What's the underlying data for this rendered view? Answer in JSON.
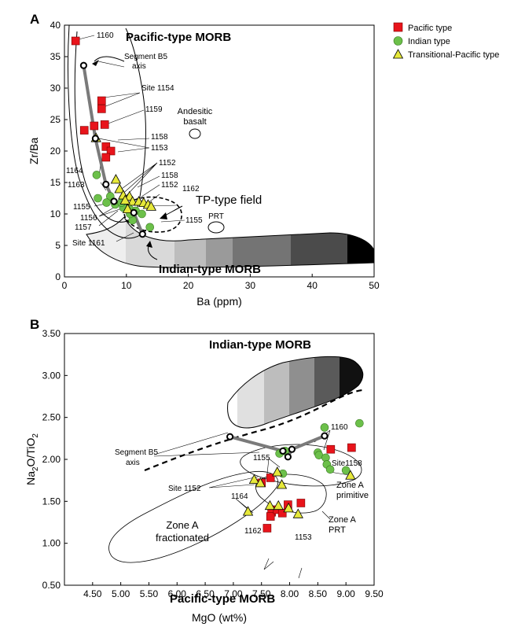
{
  "panel_a": {
    "panel_label": "A",
    "xlabel": "Ba (ppm)",
    "ylabel": "Zr/Ba",
    "pacific_morb": "Pacific-type MORB",
    "indian_morb": "Indian-type MORB",
    "tp_field": "TP-type field",
    "andesitic_basalt": [
      "Andesitic",
      "basalt"
    ],
    "prt": "PRT",
    "segment_b5": [
      "Segment B5",
      "axis"
    ],
    "site_labels": {
      "1160": "1160",
      "s1154": "Site 1154",
      "1159": "1159",
      "1158": "1158",
      "1153": "1153",
      "1152": "1152",
      "1158b": "1158",
      "1152b": "1152",
      "1162": "1162",
      "1155": "1155",
      "1164": "1164",
      "1163": "1163",
      "1155b": "1155",
      "1156": "1156",
      "1157": "1157",
      "s1161": "Site 1161"
    }
  },
  "panel_b": {
    "panel_label": "B",
    "xlabel": "MgO (wt%)",
    "ylabel_main": "Na",
    "ylabel_sub1": "2",
    "ylabel_mid": "O/TiO",
    "ylabel_sub2": "2",
    "indian_morb": "Indian-type MORB",
    "pacific_morb": "Pacific-type MORB",
    "segment_b5": [
      "Segment B5",
      "axis"
    ],
    "zone_a_fractionated": [
      "Zone A",
      "fractionated"
    ],
    "zone_a_primitive": [
      "Zone A",
      "primitive"
    ],
    "zone_a_prt": [
      "Zone A",
      "PRT"
    ],
    "site_labels": {
      "1160": "1160",
      "s1158": "Site1158",
      "1155": "1155",
      "s1152": "Site 1152",
      "1164": "1164",
      "1162": "1162",
      "1153": "1153"
    }
  },
  "legend": {
    "items": [
      {
        "label": "Pacific type",
        "marker": "square",
        "color": "#e8141b"
      },
      {
        "label": "Indian type",
        "marker": "circle",
        "color": "#6cc04a"
      },
      {
        "label": "Transitional-Pacific type",
        "marker": "triangle",
        "color": "#e6e83a"
      }
    ]
  },
  "colors": {
    "pacific": "#e8141b",
    "indian": "#6cc04a",
    "transitional": "#e6e83a",
    "segment_line": "#7a7a7a",
    "gradient": [
      "#eeeeee",
      "#d9d9d9",
      "#bdbdbd",
      "#9a9a9a",
      "#747474",
      "#4b4b4b",
      "#202020",
      "#000000"
    ]
  },
  "chart_data": [
    {
      "type": "scatter",
      "xlabel": "Ba (ppm)",
      "ylabel": "Zr/Ba",
      "xlim": [
        0,
        50
      ],
      "ylim": [
        0,
        40
      ],
      "xticks": [
        0,
        10,
        20,
        30,
        40,
        50
      ],
      "yticks": [
        0,
        5,
        10,
        15,
        20,
        25,
        30,
        35,
        40
      ],
      "series": [
        {
          "name": "Pacific type",
          "points": [
            [
              1.8,
              37.5
            ],
            [
              6.0,
              28.0
            ],
            [
              6.0,
              26.7
            ],
            [
              6.5,
              24.2
            ],
            [
              4.8,
              24.0
            ],
            [
              3.2,
              23.3
            ],
            [
              6.7,
              20.7
            ],
            [
              7.5,
              20.0
            ],
            [
              6.7,
              19.0
            ]
          ]
        },
        {
          "name": "Indian type",
          "points": [
            [
              5.2,
              16.2
            ],
            [
              5.4,
              12.5
            ],
            [
              7.4,
              12.8
            ],
            [
              8.2,
              11.5
            ],
            [
              6.8,
              11.8
            ],
            [
              9.5,
              11.0
            ],
            [
              9.2,
              11.8
            ],
            [
              10.5,
              10.8
            ],
            [
              11.5,
              10.5
            ],
            [
              12.5,
              10.0
            ],
            [
              11.0,
              9.0
            ],
            [
              10.6,
              10.0
            ],
            [
              13.8,
              7.9
            ]
          ]
        },
        {
          "name": "Transitional-Pacific type",
          "points": [
            [
              5.1,
              22.1
            ],
            [
              8.3,
              15.5
            ],
            [
              8.9,
              14.0
            ],
            [
              9.5,
              13.0
            ],
            [
              10.5,
              12.8
            ],
            [
              11.0,
              12.0
            ],
            [
              12.0,
              12.0
            ],
            [
              12.8,
              11.8
            ],
            [
              13.5,
              11.5
            ],
            [
              14.0,
              11.2
            ],
            [
              9.8,
              12.2
            ],
            [
              10.2,
              10.8
            ]
          ]
        },
        {
          "name": "Segment B5 axis",
          "points": [
            [
              3.1,
              33.6
            ],
            [
              5.0,
              22.0
            ],
            [
              6.7,
              14.7
            ],
            [
              8.0,
              12.0
            ],
            [
              11.2,
              10.2
            ],
            [
              12.6,
              6.8
            ]
          ]
        }
      ]
    },
    {
      "type": "scatter",
      "xlabel": "MgO (wt%)",
      "ylabel": "Na2O/TiO2",
      "xlim": [
        4.0,
        9.5
      ],
      "ylim": [
        0.5,
        3.5
      ],
      "xticks": [
        4.5,
        5.0,
        5.5,
        6.0,
        6.5,
        7.0,
        7.5,
        8.0,
        8.5,
        9.0,
        9.5
      ],
      "yticks": [
        0.5,
        1.0,
        1.5,
        2.0,
        2.5,
        3.0,
        3.5
      ],
      "series": [
        {
          "name": "Pacific type",
          "points": [
            [
              7.66,
              1.78
            ],
            [
              7.5,
              1.72
            ],
            [
              7.68,
              1.37
            ],
            [
              7.66,
              1.32
            ],
            [
              7.78,
              1.4
            ],
            [
              7.87,
              1.36
            ],
            [
              7.97,
              1.46
            ],
            [
              8.2,
              1.48
            ],
            [
              7.6,
              1.18
            ],
            [
              8.73,
              2.12
            ],
            [
              9.1,
              2.14
            ]
          ]
        },
        {
          "name": "Indian type",
          "points": [
            [
              7.92,
              2.1
            ],
            [
              7.82,
              2.07
            ],
            [
              7.88,
              1.83
            ],
            [
              8.5,
              2.08
            ],
            [
              8.52,
              2.05
            ],
            [
              8.62,
              2.38
            ],
            [
              8.64,
              2.02
            ],
            [
              8.66,
              1.94
            ],
            [
              8.72,
              1.88
            ],
            [
              9.0,
              1.87
            ],
            [
              9.24,
              2.43
            ]
          ]
        },
        {
          "name": "Transitional-Pacific type",
          "points": [
            [
              7.37,
              1.76
            ],
            [
              7.48,
              1.72
            ],
            [
              7.78,
              1.85
            ],
            [
              7.86,
              1.7
            ],
            [
              7.26,
              1.38
            ],
            [
              7.65,
              1.45
            ],
            [
              7.8,
              1.45
            ],
            [
              7.98,
              1.42
            ],
            [
              8.15,
              1.35
            ],
            [
              9.08,
              1.81
            ]
          ]
        },
        {
          "name": "Segment B5 axis",
          "points": [
            [
              6.94,
              2.27
            ],
            [
              7.88,
              2.1
            ],
            [
              7.97,
              2.03
            ],
            [
              8.04,
              2.12
            ],
            [
              8.62,
              2.28
            ]
          ]
        }
      ]
    }
  ]
}
